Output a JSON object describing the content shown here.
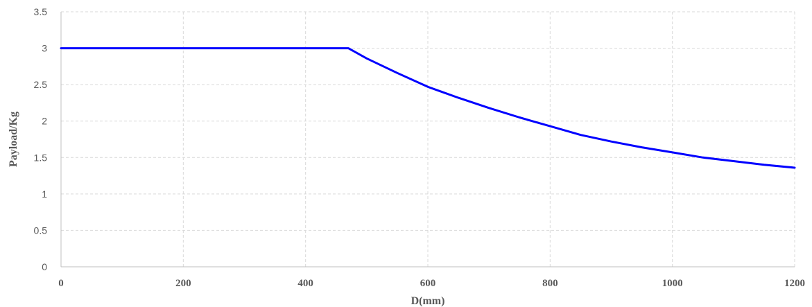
{
  "chart_data": {
    "type": "line",
    "xlabel": "D(mm)",
    "ylabel": "Payload/Kg",
    "xlim": [
      0,
      1200
    ],
    "ylim": [
      0,
      3.5
    ],
    "x_ticks": [
      "0",
      "200",
      "400",
      "600",
      "800",
      "1000",
      "1200"
    ],
    "y_ticks": [
      "0",
      "0.5",
      "1",
      "1.5",
      "2",
      "2.5",
      "3",
      "3.5"
    ],
    "grid": true,
    "legend": "none",
    "series": [
      {
        "color": "#0000ff",
        "x": [
          0,
          470,
          500,
          550,
          600,
          650,
          700,
          750,
          800,
          850,
          900,
          950,
          1000,
          1050,
          1100,
          1150,
          1200
        ],
        "y": [
          3.0,
          3.0,
          2.86,
          2.66,
          2.47,
          2.32,
          2.18,
          2.05,
          1.93,
          1.81,
          1.72,
          1.64,
          1.57,
          1.5,
          1.45,
          1.4,
          1.36
        ]
      }
    ]
  }
}
